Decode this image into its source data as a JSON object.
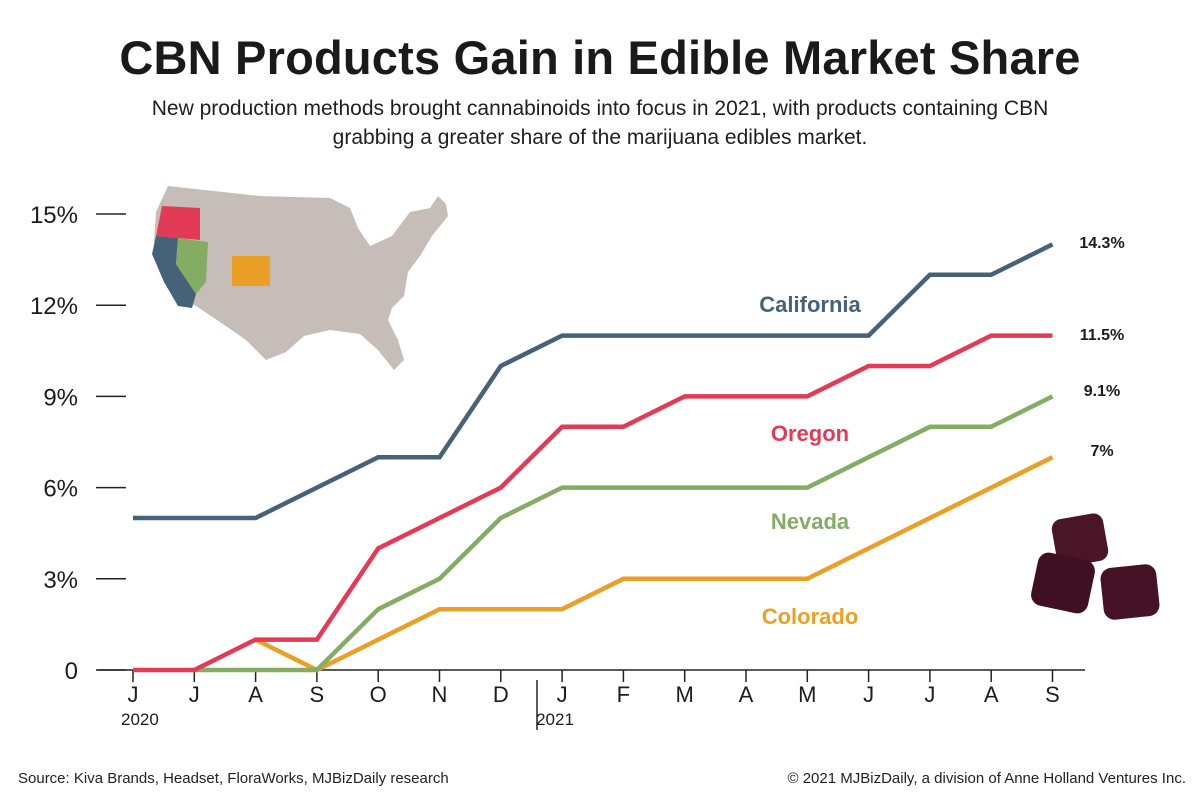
{
  "title": "CBN Products Gain in Edible Market Share",
  "subtitle": "New production methods brought cannabinoids into focus in 2021, with products containing CBN grabbing a greater share of the marijuana edibles market.",
  "source": "Source: Kiva Brands, Headset, FloraWorks, MJBizDaily research",
  "copyright": "© 2021 MJBizDaily, a division of Anne Holland Ventures Inc.",
  "colors": {
    "California": "#46627a",
    "Oregon": "#e33a55",
    "Nevada": "#84ad63",
    "Colorado": "#eaa027",
    "map": "#c6bdb8",
    "axis": "#222222"
  },
  "chart_data": {
    "type": "line",
    "categories": [
      "J",
      "J",
      "A",
      "S",
      "O",
      "N",
      "D",
      "J",
      "F",
      "M",
      "A",
      "M",
      "J",
      "J",
      "A",
      "S"
    ],
    "year_labels": [
      {
        "label": "2020",
        "index": 0
      },
      {
        "label": "2021",
        "index": 7
      }
    ],
    "yticks": [
      {
        "value": 0,
        "label": "0"
      },
      {
        "value": 3,
        "label": "3%"
      },
      {
        "value": 6,
        "label": "6%"
      },
      {
        "value": 9,
        "label": "9%"
      },
      {
        "value": 12,
        "label": "12%"
      },
      {
        "value": 15,
        "label": "15%"
      }
    ],
    "ylim": [
      0,
      15
    ],
    "series": [
      {
        "name": "California",
        "values": [
          5,
          5,
          5,
          6,
          7,
          7,
          10,
          11,
          11,
          11,
          11,
          11,
          11,
          13,
          13,
          14
        ],
        "end_label": "14.3%"
      },
      {
        "name": "Oregon",
        "values": [
          0,
          0,
          1,
          1,
          4,
          5,
          6,
          8,
          8,
          9,
          9,
          9,
          10,
          10,
          11,
          11
        ],
        "end_label": "11.5%"
      },
      {
        "name": "Nevada",
        "values": [
          null,
          0,
          0,
          0,
          2,
          3,
          5,
          6,
          6,
          6,
          6,
          6,
          7,
          8,
          8,
          9
        ],
        "end_label": "9.1%"
      },
      {
        "name": "Colorado",
        "values": [
          null,
          null,
          1,
          0,
          1,
          2,
          2,
          2,
          3,
          3,
          3,
          3,
          4,
          5,
          6,
          7
        ],
        "end_label": "7%"
      }
    ]
  }
}
